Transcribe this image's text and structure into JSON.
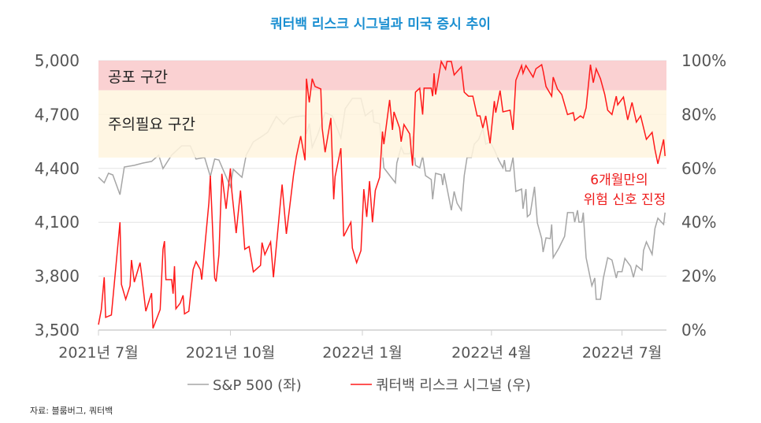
{
  "chart_data": {
    "type": "line",
    "title": "쿼터백 리스크 시그널과 미국 증시 추이",
    "x_start_date": "2021-07-01",
    "x_unit": "days since 2021-07-01",
    "xlim": [
      0,
      396
    ],
    "x_ticks": [
      {
        "day": 0,
        "label": "2021년 7월"
      },
      {
        "day": 92,
        "label": "2021년 10월"
      },
      {
        "day": 184,
        "label": "2022년 1월"
      },
      {
        "day": 274,
        "label": "2022년 4월"
      },
      {
        "day": 365,
        "label": "2022년 7월"
      }
    ],
    "y_left": {
      "lim": [
        3500,
        5000
      ],
      "ticks": [
        "3,500",
        "3,800",
        "4,100",
        "4,400",
        "4,700",
        "5,000"
      ],
      "tick_values": [
        3500,
        3800,
        4100,
        4400,
        4700,
        5000
      ]
    },
    "y_right": {
      "lim": [
        0,
        100
      ],
      "ticks": [
        "0%",
        "20%",
        "40%",
        "60%",
        "80%",
        "100%"
      ],
      "tick_values": [
        0,
        20,
        40,
        60,
        80,
        100
      ]
    },
    "grid": true,
    "bands": [
      {
        "label": "공포 구간",
        "from": 89,
        "to": 100,
        "axis": "right",
        "color": "#f9c9ca"
      },
      {
        "label": "주의필요 구간",
        "from": 64,
        "to": 89,
        "axis": "right",
        "color": "#fff4de"
      }
    ],
    "annotation": {
      "lines": [
        "6개월만의",
        "위험 신호 진정"
      ],
      "color": "#ee1c1c"
    },
    "legend_position": "bottom",
    "series": [
      {
        "name": "S&P 500 (좌)",
        "axis": "left",
        "color": "#a6a6a6",
        "points": [
          [
            0,
            4351
          ],
          [
            4,
            4320
          ],
          [
            7,
            4373
          ],
          [
            10,
            4364
          ],
          [
            15,
            4254
          ],
          [
            18,
            4408
          ],
          [
            25,
            4417
          ],
          [
            31,
            4430
          ],
          [
            37,
            4439
          ],
          [
            42,
            4474
          ],
          [
            45,
            4399
          ],
          [
            51,
            4474
          ],
          [
            58,
            4526
          ],
          [
            64,
            4526
          ],
          [
            68,
            4452
          ],
          [
            74,
            4461
          ],
          [
            78,
            4355
          ],
          [
            81,
            4452
          ],
          [
            84,
            4447
          ],
          [
            92,
            4298
          ],
          [
            94,
            4395
          ],
          [
            100,
            4351
          ],
          [
            103,
            4474
          ],
          [
            108,
            4548
          ],
          [
            114,
            4579
          ],
          [
            118,
            4601
          ],
          [
            124,
            4689
          ],
          [
            129,
            4645
          ],
          [
            133,
            4680
          ],
          [
            138,
            4689
          ],
          [
            144,
            4693
          ],
          [
            145,
            4592
          ],
          [
            147,
            4649
          ],
          [
            149,
            4518
          ],
          [
            153,
            4592
          ],
          [
            158,
            4711
          ],
          [
            163,
            4693
          ],
          [
            169,
            4570
          ],
          [
            172,
            4733
          ],
          [
            177,
            4790
          ],
          [
            183,
            4790
          ],
          [
            186,
            4693
          ],
          [
            191,
            4724
          ],
          [
            192,
            4658
          ],
          [
            196,
            4649
          ],
          [
            199,
            4403
          ],
          [
            204,
            4351
          ],
          [
            207,
            4320
          ],
          [
            208,
            4430
          ],
          [
            211,
            4518
          ],
          [
            213,
            4482
          ],
          [
            217,
            4482
          ],
          [
            219,
            4579
          ],
          [
            221,
            4417
          ],
          [
            224,
            4403
          ],
          [
            226,
            4469
          ],
          [
            228,
            4360
          ],
          [
            232,
            4338
          ],
          [
            233,
            4228
          ],
          [
            235,
            4373
          ],
          [
            239,
            4364
          ],
          [
            240,
            4307
          ],
          [
            241,
            4373
          ],
          [
            246,
            4167
          ],
          [
            248,
            4272
          ],
          [
            250,
            4206
          ],
          [
            253,
            4167
          ],
          [
            255,
            4360
          ],
          [
            257,
            4461
          ],
          [
            260,
            4461
          ],
          [
            262,
            4535
          ],
          [
            265,
            4561
          ],
          [
            268,
            4623
          ],
          [
            270,
            4535
          ],
          [
            273,
            4548
          ],
          [
            276,
            4504
          ],
          [
            279,
            4447
          ],
          [
            282,
            4403
          ],
          [
            283,
            4447
          ],
          [
            284,
            4386
          ],
          [
            287,
            4386
          ],
          [
            289,
            4461
          ],
          [
            291,
            4272
          ],
          [
            295,
            4285
          ],
          [
            296,
            4175
          ],
          [
            298,
            4285
          ],
          [
            299,
            4131
          ],
          [
            301,
            4145
          ],
          [
            304,
            4298
          ],
          [
            306,
            4097
          ],
          [
            309,
            4009
          ],
          [
            310,
            3934
          ],
          [
            312,
            4013
          ],
          [
            315,
            4009
          ],
          [
            316,
            4088
          ],
          [
            317,
            3903
          ],
          [
            321,
            3956
          ],
          [
            325,
            4022
          ],
          [
            327,
            4154
          ],
          [
            331,
            4154
          ],
          [
            332,
            4101
          ],
          [
            334,
            4167
          ],
          [
            335,
            4101
          ],
          [
            337,
            4101
          ],
          [
            338,
            4154
          ],
          [
            340,
            3903
          ],
          [
            344,
            3746
          ],
          [
            346,
            3790
          ],
          [
            347,
            3671
          ],
          [
            350,
            3671
          ],
          [
            352,
            3790
          ],
          [
            355,
            3903
          ],
          [
            358,
            3890
          ],
          [
            361,
            3790
          ],
          [
            362,
            3825
          ],
          [
            365,
            3825
          ],
          [
            367,
            3899
          ],
          [
            371,
            3855
          ],
          [
            373,
            3794
          ],
          [
            375,
            3860
          ],
          [
            379,
            3833
          ],
          [
            380,
            3943
          ],
          [
            382,
            3991
          ],
          [
            386,
            3921
          ],
          [
            388,
            4066
          ],
          [
            390,
            4123
          ],
          [
            394,
            4088
          ],
          [
            395,
            4154
          ]
        ]
      },
      {
        "name": "쿼터백 리스크 시그널 (우)",
        "axis": "right",
        "color": "#ff1a1a",
        "points": [
          [
            0,
            2
          ],
          [
            2,
            7.6
          ],
          [
            4,
            19.6
          ],
          [
            5,
            4.7
          ],
          [
            9,
            5.6
          ],
          [
            15,
            40
          ],
          [
            16,
            17
          ],
          [
            19,
            11.4
          ],
          [
            22,
            16.4
          ],
          [
            23,
            26
          ],
          [
            25,
            17.8
          ],
          [
            29,
            25
          ],
          [
            30,
            21
          ],
          [
            33,
            7
          ],
          [
            37,
            13.7
          ],
          [
            38,
            0.6
          ],
          [
            43,
            7.6
          ],
          [
            45,
            30
          ],
          [
            46,
            33
          ],
          [
            47,
            18.7
          ],
          [
            51,
            18.7
          ],
          [
            52,
            13.5
          ],
          [
            53,
            23.7
          ],
          [
            54,
            7.9
          ],
          [
            57,
            10
          ],
          [
            59,
            12.9
          ],
          [
            60,
            6
          ],
          [
            63,
            7
          ],
          [
            66,
            22.5
          ],
          [
            68,
            25.4
          ],
          [
            71,
            22.5
          ],
          [
            72,
            18.7
          ],
          [
            77,
            47.4
          ],
          [
            78,
            57.3
          ],
          [
            81,
            19.3
          ],
          [
            82,
            18
          ],
          [
            84,
            28
          ],
          [
            86,
            58
          ],
          [
            89,
            45
          ],
          [
            92,
            60
          ],
          [
            93,
            51.5
          ],
          [
            96,
            36
          ],
          [
            99,
            51.8
          ],
          [
            102,
            30
          ],
          [
            105,
            31
          ],
          [
            108,
            21.6
          ],
          [
            113,
            24
          ],
          [
            114,
            32.5
          ],
          [
            116,
            28
          ],
          [
            120,
            32.7
          ],
          [
            122,
            19.6
          ],
          [
            128,
            54
          ],
          [
            131,
            35.7
          ],
          [
            133,
            44.4
          ],
          [
            136,
            57.6
          ],
          [
            138,
            64.6
          ],
          [
            141,
            72
          ],
          [
            144,
            63
          ],
          [
            145,
            93.3
          ],
          [
            147,
            84.5
          ],
          [
            149,
            93.3
          ],
          [
            151,
            90.4
          ],
          [
            155,
            89.5
          ],
          [
            156,
            74.9
          ],
          [
            158,
            66
          ],
          [
            162,
            78.7
          ],
          [
            164,
            48.5
          ],
          [
            165,
            57
          ],
          [
            169,
            67.5
          ],
          [
            171,
            34.8
          ],
          [
            176,
            40
          ],
          [
            177,
            30.4
          ],
          [
            180,
            25
          ],
          [
            183,
            29.5
          ],
          [
            185,
            52.3
          ],
          [
            187,
            42
          ],
          [
            189,
            55.3
          ],
          [
            191,
            40
          ],
          [
            193,
            51.8
          ],
          [
            196,
            56.7
          ],
          [
            198,
            73.7
          ],
          [
            199,
            69
          ],
          [
            203,
            85.4
          ],
          [
            205,
            74.3
          ],
          [
            206,
            81
          ],
          [
            210,
            74.9
          ],
          [
            211,
            69.9
          ],
          [
            213,
            76.3
          ],
          [
            217,
            72.8
          ],
          [
            219,
            61
          ],
          [
            221,
            88.3
          ],
          [
            224,
            89.8
          ],
          [
            226,
            80
          ],
          [
            227,
            89.8
          ],
          [
            232,
            89.8
          ],
          [
            233,
            86.8
          ],
          [
            234,
            95.3
          ],
          [
            235,
            87.4
          ],
          [
            239,
            99.7
          ],
          [
            242,
            96.8
          ],
          [
            243,
            99.7
          ],
          [
            246,
            99.7
          ],
          [
            248,
            94.7
          ],
          [
            253,
            97.7
          ],
          [
            255,
            88.3
          ],
          [
            258,
            86.8
          ],
          [
            261,
            86.8
          ],
          [
            264,
            79.5
          ],
          [
            266,
            79.5
          ],
          [
            268,
            75
          ],
          [
            270,
            79.5
          ],
          [
            273,
            69.3
          ],
          [
            276,
            85
          ],
          [
            277,
            80.7
          ],
          [
            280,
            88.9
          ],
          [
            282,
            81
          ],
          [
            287,
            81.6
          ],
          [
            289,
            74.3
          ],
          [
            291,
            92.7
          ],
          [
            295,
            98.2
          ],
          [
            296,
            95.3
          ],
          [
            298,
            98.2
          ],
          [
            303,
            93.9
          ],
          [
            305,
            97
          ],
          [
            309,
            98.5
          ],
          [
            310,
            96.2
          ],
          [
            312,
            90.4
          ],
          [
            316,
            86.8
          ],
          [
            317,
            93.9
          ],
          [
            320,
            89.5
          ],
          [
            323,
            87.4
          ],
          [
            327,
            80
          ],
          [
            331,
            80.7
          ],
          [
            332,
            77.8
          ],
          [
            336,
            79.5
          ],
          [
            338,
            78.7
          ],
          [
            340,
            82.5
          ],
          [
            343,
            98.5
          ],
          [
            345,
            91.8
          ],
          [
            347,
            97
          ],
          [
            350,
            93.3
          ],
          [
            353,
            87.4
          ],
          [
            355,
            81.6
          ],
          [
            358,
            80
          ],
          [
            361,
            86.8
          ],
          [
            362,
            83.6
          ],
          [
            366,
            86.5
          ],
          [
            369,
            78
          ],
          [
            372,
            84.5
          ],
          [
            375,
            77.2
          ],
          [
            378,
            79.5
          ],
          [
            382,
            70.8
          ],
          [
            386,
            73.4
          ],
          [
            388,
            67
          ],
          [
            390,
            61.7
          ],
          [
            394,
            70.8
          ],
          [
            395,
            64.6
          ]
        ]
      }
    ]
  },
  "source": "자료: 블룸버그, 쿼터백"
}
